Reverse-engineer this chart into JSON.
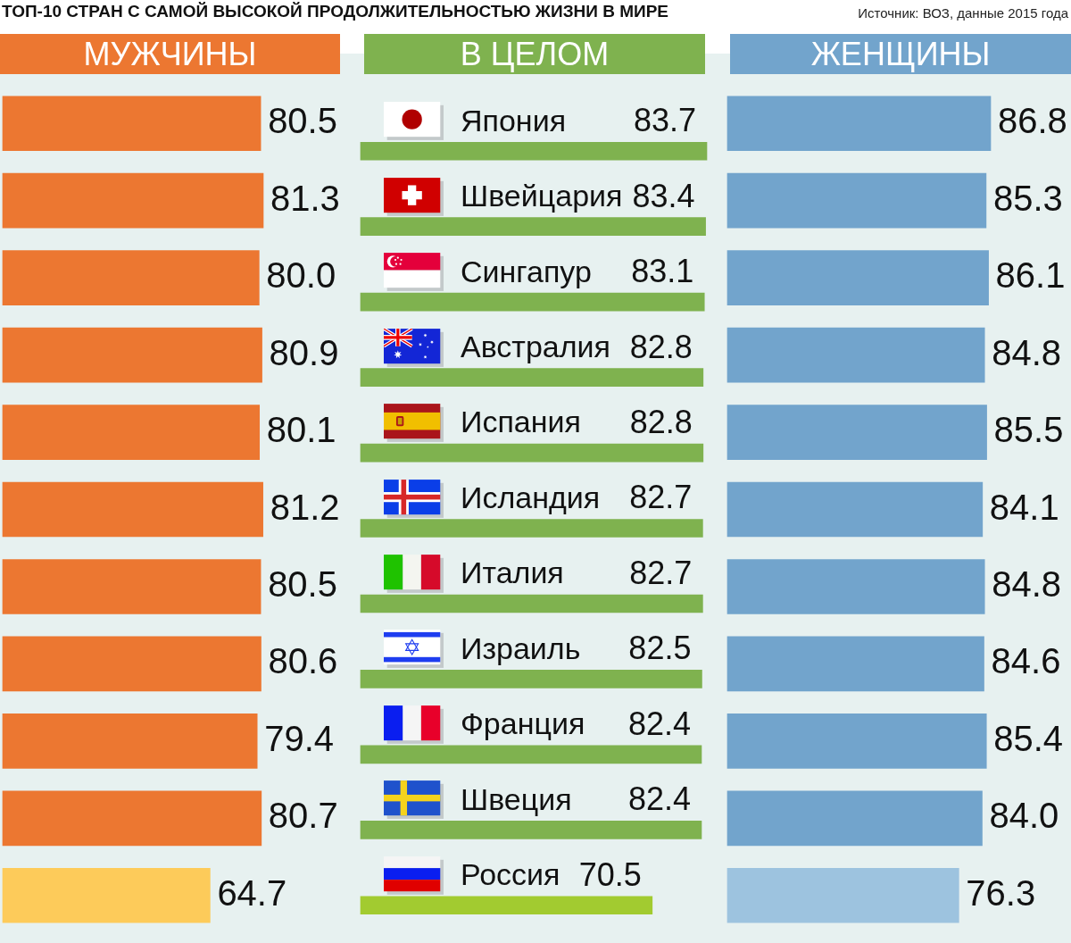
{
  "chart_data": [
    {
      "type": "other",
      "title": "ТОП-10 СТРАН С САМОЙ ВЫСОКОЙ ПРОДОЛЖИТЕЛЬНОСТЬЮ ЖИЗНИ В МИРЕ",
      "annotations": [
        "Источник: ВОЗ, данные 2015 года"
      ]
    },
    {
      "type": "bar",
      "orientation": "horizontal",
      "title": "МУЖЧИНЫ",
      "categories": [
        null,
        null,
        null,
        null,
        null,
        null,
        null,
        null,
        null,
        null,
        null
      ],
      "values": [
        80.5,
        81.3,
        80.0,
        80.9,
        80.1,
        81.2,
        80.5,
        80.6,
        79.4,
        80.7,
        64.7
      ],
      "value_labels": [
        "80.5",
        "81.3",
        "80.0",
        "80.9",
        "80.1",
        "81.2",
        "80.5",
        "80.6",
        "79.4",
        "80.7",
        "64.7"
      ],
      "colors": [
        "#ec7731",
        "#ec7731",
        "#ec7731",
        "#ec7731",
        "#ec7731",
        "#ec7731",
        "#ec7731",
        "#ec7731",
        "#ec7731",
        "#ec7731",
        "#fdcb5a"
      ],
      "tick_labels": false
    },
    {
      "type": "bar",
      "orientation": "horizontal",
      "title": "В ЦЕЛОМ",
      "categories": [
        "Япония",
        "Швейцария",
        "Сингапур",
        "Австралия",
        "Испания",
        "Исландия",
        "Италия",
        "Израиль",
        "Франция",
        "Швеция",
        "Россия"
      ],
      "values": [
        83.7,
        83.4,
        83.1,
        82.8,
        82.8,
        82.7,
        82.7,
        82.5,
        82.4,
        82.4,
        70.5
      ],
      "value_labels": [
        "83.7",
        "83.4",
        "83.1",
        "82.8",
        "82.8",
        "82.7",
        "82.7",
        "82.5",
        "82.4",
        "82.4",
        "70.5"
      ],
      "colors": [
        "#7fb24f",
        "#7fb24f",
        "#7fb24f",
        "#7fb24f",
        "#7fb24f",
        "#7fb24f",
        "#7fb24f",
        "#7fb24f",
        "#7fb24f",
        "#7fb24f",
        "#a2cb30"
      ],
      "tick_labels": "y"
    },
    {
      "type": "bar",
      "orientation": "horizontal",
      "title": "ЖЕНЩИНЫ",
      "categories": [
        null,
        null,
        null,
        null,
        null,
        null,
        null,
        null,
        null,
        null,
        null
      ],
      "values": [
        86.8,
        85.3,
        86.1,
        84.8,
        85.5,
        84.1,
        84.8,
        84.6,
        85.4,
        84.0,
        76.3
      ],
      "value_labels": [
        "86.8",
        "85.3",
        "86.1",
        "84.8",
        "85.5",
        "84.1",
        "84.8",
        "84.6",
        "85.4",
        "84.0",
        "76.3"
      ],
      "colors": [
        "#72a4cc",
        "#72a4cc",
        "#72a4cc",
        "#72a4cc",
        "#72a4cc",
        "#72a4cc",
        "#72a4cc",
        "#72a4cc",
        "#72a4cc",
        "#72a4cc",
        "#9dc3df"
      ],
      "tick_labels": false
    }
  ]
}
